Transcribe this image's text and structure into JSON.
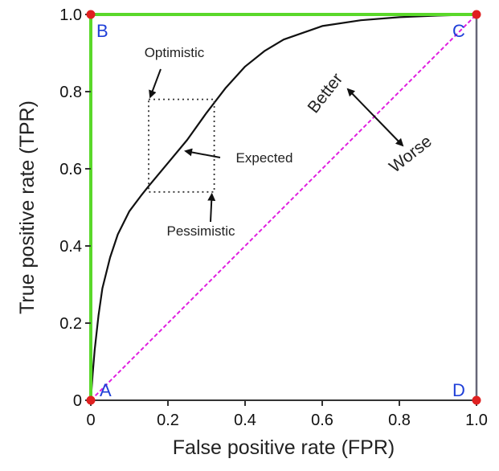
{
  "chart_data": {
    "type": "line",
    "title": "",
    "xlabel": "False positive rate (FPR)",
    "ylabel": "True positive rate (TPR)",
    "xlim": [
      0,
      1
    ],
    "ylim": [
      0,
      1
    ],
    "xticks": [
      "0",
      "0.2",
      "0.4",
      "0.6",
      "0.8",
      "1.0"
    ],
    "yticks": [
      "0",
      "0.2",
      "0.4",
      "0.6",
      "0.8",
      "1.0"
    ],
    "grid": false,
    "series": [
      {
        "role": "roc-curve",
        "color": "#111111",
        "x": [
          0.0,
          0.005,
          0.01,
          0.02,
          0.03,
          0.05,
          0.07,
          0.1,
          0.13,
          0.15,
          0.2,
          0.25,
          0.3,
          0.35,
          0.4,
          0.45,
          0.5,
          0.6,
          0.7,
          0.8,
          0.9,
          1.0
        ],
        "y": [
          0.0,
          0.07,
          0.13,
          0.22,
          0.29,
          0.37,
          0.43,
          0.49,
          0.53,
          0.555,
          0.615,
          0.675,
          0.745,
          0.81,
          0.865,
          0.905,
          0.935,
          0.97,
          0.985,
          0.993,
          0.997,
          1.0
        ]
      },
      {
        "role": "perfect-classifier",
        "color": "#5ad82a",
        "x": [
          0,
          0,
          1
        ],
        "y": [
          0,
          1,
          1
        ]
      },
      {
        "role": "random-classifier",
        "color": "#e020e0",
        "x": [
          0,
          1
        ],
        "y": [
          0,
          1
        ]
      }
    ],
    "corner_points": [
      {
        "label": "A",
        "x": 0,
        "y": 0
      },
      {
        "label": "B",
        "x": 0,
        "y": 1
      },
      {
        "label": "C",
        "x": 1,
        "y": 1
      },
      {
        "label": "D",
        "x": 1,
        "y": 0
      }
    ],
    "uncertainty_box": {
      "x": [
        0.15,
        0.32
      ],
      "y": [
        0.54,
        0.78
      ]
    },
    "annotations": {
      "optimistic": "Optimistic",
      "expected": "Expected",
      "pessimistic": "Pessimistic",
      "better": "Better",
      "worse": "Worse"
    },
    "colors": {
      "axis": "#333333",
      "corner_label": "#1f3fd8",
      "corner_dot": "#e02020",
      "frame_gray": "#666677"
    }
  }
}
